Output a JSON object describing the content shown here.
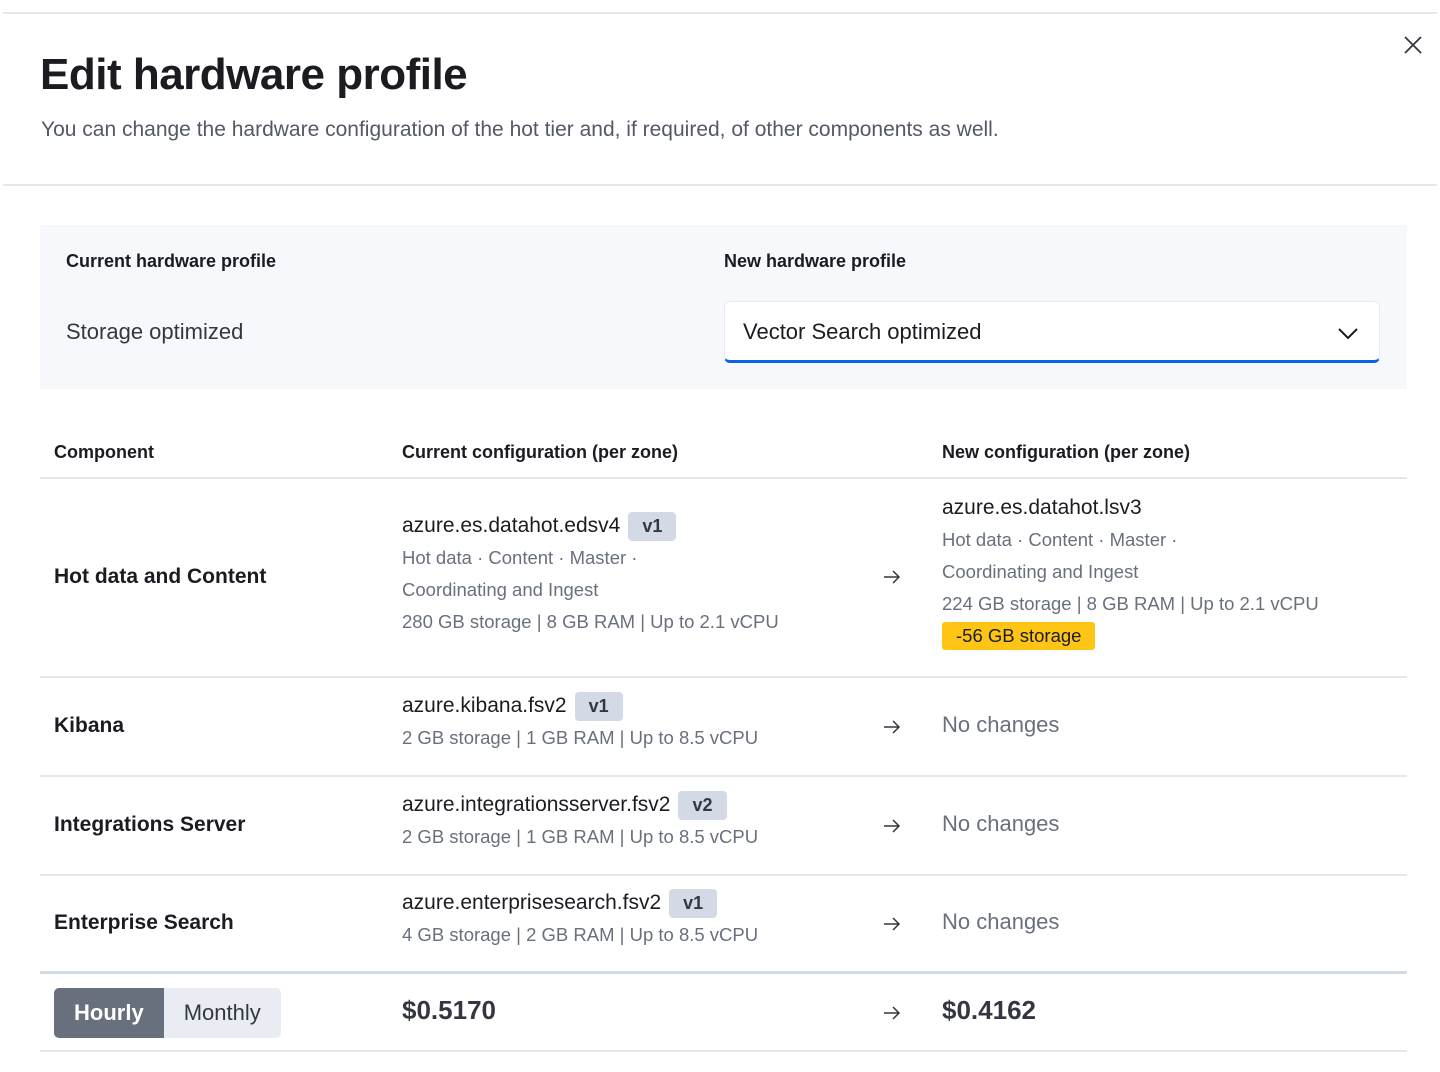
{
  "title": "Edit hardware profile",
  "subtitle": "You can change the hardware configuration of the hot tier and, if required, of other components as well.",
  "profile": {
    "current_label": "Current hardware profile",
    "current_value": "Storage optimized",
    "new_label": "New hardware profile",
    "new_value": "Vector Search optimized",
    "accent": "#0b64dd"
  },
  "table": {
    "headers": [
      "Component",
      "Current configuration (per zone)",
      "New configuration (per zone)"
    ],
    "rows": [
      {
        "component": "Hot data and Content",
        "current_instance": "azure.es.datahot.edsv4",
        "current_version": "v1",
        "current_roles_1": "Hot data · Content · Master ·",
        "current_roles_2": "Coordinating and Ingest",
        "current_specs": "280 GB storage | 8 GB RAM | Up to 2.1 vCPU",
        "new_instance": "azure.es.datahot.lsv3",
        "new_roles_1": "Hot data · Content · Master ·",
        "new_roles_2": "Coordinating and Ingest",
        "new_specs": "224 GB storage | 8 GB RAM | Up to 2.1 vCPU",
        "diff": "-56 GB storage"
      },
      {
        "component": "Kibana",
        "current_instance": "azure.kibana.fsv2",
        "current_version": "v1",
        "current_specs": "2 GB storage | 1 GB RAM | Up to 8.5 vCPU",
        "new": "No changes"
      },
      {
        "component": "Integrations Server",
        "current_instance": "azure.integrationsserver.fsv2",
        "current_version": "v2",
        "current_specs": "2 GB storage | 1 GB RAM | Up to 8.5 vCPU",
        "new": "No changes"
      },
      {
        "component": "Enterprise Search",
        "current_instance": "azure.enterprisesearch.fsv2",
        "current_version": "v1",
        "current_specs": "4 GB storage | 2 GB RAM | Up to 8.5 vCPU",
        "new": "No changes"
      }
    ]
  },
  "pricing": {
    "options": [
      "Hourly",
      "Monthly"
    ],
    "selected": "Hourly",
    "current": "$0.5170",
    "new": "$0.4162"
  },
  "colors": {
    "warning": "#fec514",
    "badge": "#d3dae6"
  }
}
